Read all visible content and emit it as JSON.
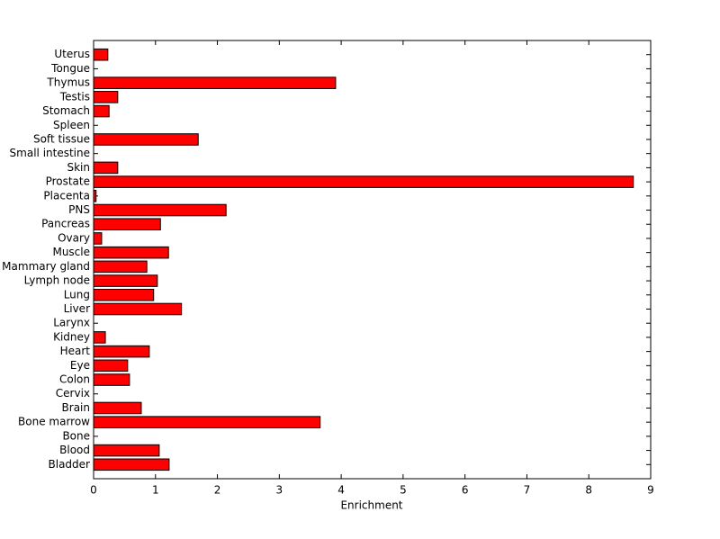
{
  "chart_data": {
    "type": "bar",
    "orientation": "horizontal",
    "xlabel": "Enrichment",
    "categories": [
      "Bladder",
      "Blood",
      "Bone",
      "Bone marrow",
      "Brain",
      "Cervix",
      "Colon",
      "Eye",
      "Heart",
      "Kidney",
      "Larynx",
      "Liver",
      "Lung",
      "Lymph node",
      "Mammary gland",
      "Muscle",
      "Ovary",
      "Pancreas",
      "PNS",
      "Placenta",
      "Prostate",
      "Skin",
      "Small intestine",
      "Soft tissue",
      "Spleen",
      "Stomach",
      "Testis",
      "Thymus",
      "Tongue",
      "Uterus"
    ],
    "values": [
      1.22,
      1.06,
      0,
      3.66,
      0.77,
      0,
      0.58,
      0.55,
      0.9,
      0.19,
      0,
      1.42,
      0.97,
      1.03,
      0.86,
      1.21,
      0.13,
      1.08,
      2.14,
      0.04,
      8.72,
      0.39,
      0,
      1.69,
      0,
      0.25,
      0.39,
      3.91,
      0,
      0.23
    ],
    "color": "#ff0000",
    "xlim": [
      0,
      9
    ],
    "xticks": [
      0,
      1,
      2,
      3,
      4,
      5,
      6,
      7,
      8,
      9
    ]
  }
}
